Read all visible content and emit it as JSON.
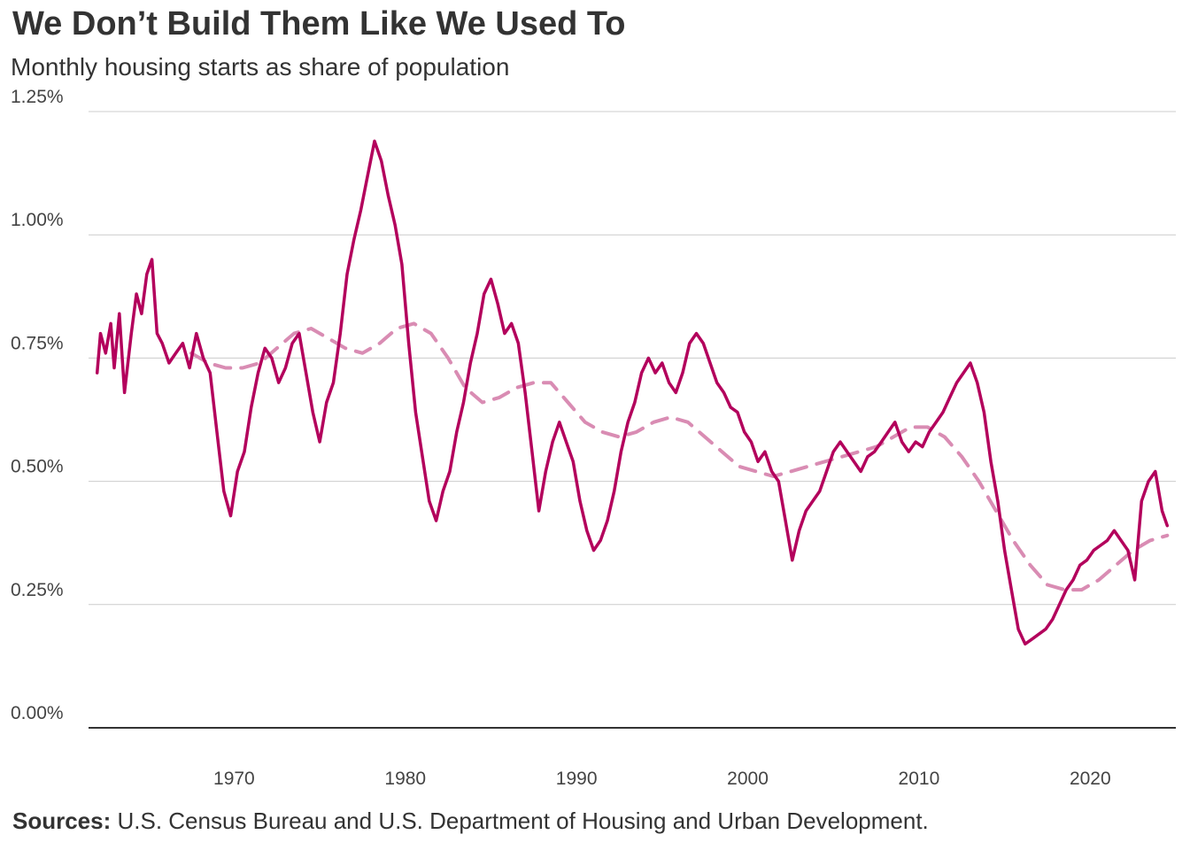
{
  "title": "We Don’t Build  Them Like  We Used  To",
  "subtitle": "Monthly housing starts as share of population",
  "source": {
    "label": "Sources:",
    "text": " U.S. Census Bureau and U.S. Department of Housing and Urban Development."
  },
  "colors": {
    "series": "#b3005c",
    "trend": "#d98cb3",
    "grid": "#cccccc",
    "axis": "#333333",
    "text": "#333333"
  },
  "chart_data": {
    "type": "line",
    "title": "We Don’t Build  Them Like  We Used  To",
    "subtitle": "Monthly housing starts as share of population",
    "xlabel": "",
    "ylabel": "",
    "xlim": [
      1961.5,
      2025.0
    ],
    "ylim": [
      0,
      1.25
    ],
    "x_ticks": [
      1970,
      1980,
      1990,
      2000,
      2010,
      2020
    ],
    "x_tick_labels": [
      "1970",
      "1980",
      "1990",
      "2000",
      "2010",
      "2020"
    ],
    "y_ticks": [
      0,
      0.25,
      0.5,
      0.75,
      1.0,
      1.25
    ],
    "y_tick_labels": [
      "0.00%",
      "0.25%",
      "0.50%",
      "0.75%",
      "1.00%",
      "1.25%"
    ],
    "grid": true,
    "legend": "none",
    "series": [
      {
        "style": "solid",
        "points": [
          [
            1962.0,
            0.72
          ],
          [
            1962.2,
            0.8
          ],
          [
            1962.5,
            0.76
          ],
          [
            1962.8,
            0.82
          ],
          [
            1963.0,
            0.73
          ],
          [
            1963.3,
            0.84
          ],
          [
            1963.6,
            0.68
          ],
          [
            1964.0,
            0.8
          ],
          [
            1964.3,
            0.88
          ],
          [
            1964.6,
            0.84
          ],
          [
            1964.9,
            0.92
          ],
          [
            1965.2,
            0.95
          ],
          [
            1965.5,
            0.8
          ],
          [
            1965.8,
            0.78
          ],
          [
            1966.2,
            0.74
          ],
          [
            1966.6,
            0.76
          ],
          [
            1967.0,
            0.78
          ],
          [
            1967.4,
            0.73
          ],
          [
            1967.8,
            0.8
          ],
          [
            1968.2,
            0.75
          ],
          [
            1968.6,
            0.72
          ],
          [
            1969.0,
            0.6
          ],
          [
            1969.4,
            0.48
          ],
          [
            1969.8,
            0.43
          ],
          [
            1970.2,
            0.52
          ],
          [
            1970.6,
            0.56
          ],
          [
            1971.0,
            0.65
          ],
          [
            1971.4,
            0.72
          ],
          [
            1971.8,
            0.77
          ],
          [
            1972.2,
            0.75
          ],
          [
            1972.6,
            0.7
          ],
          [
            1973.0,
            0.73
          ],
          [
            1973.4,
            0.78
          ],
          [
            1973.8,
            0.8
          ],
          [
            1974.2,
            0.72
          ],
          [
            1974.6,
            0.64
          ],
          [
            1975.0,
            0.58
          ],
          [
            1975.4,
            0.66
          ],
          [
            1975.8,
            0.7
          ],
          [
            1976.2,
            0.8
          ],
          [
            1976.6,
            0.92
          ],
          [
            1977.0,
            0.99
          ],
          [
            1977.4,
            1.05
          ],
          [
            1977.8,
            1.12
          ],
          [
            1978.2,
            1.19
          ],
          [
            1978.6,
            1.15
          ],
          [
            1979.0,
            1.08
          ],
          [
            1979.4,
            1.02
          ],
          [
            1979.8,
            0.94
          ],
          [
            1980.2,
            0.78
          ],
          [
            1980.6,
            0.64
          ],
          [
            1981.0,
            0.55
          ],
          [
            1981.4,
            0.46
          ],
          [
            1981.8,
            0.42
          ],
          [
            1982.2,
            0.48
          ],
          [
            1982.6,
            0.52
          ],
          [
            1983.0,
            0.6
          ],
          [
            1983.4,
            0.66
          ],
          [
            1983.8,
            0.74
          ],
          [
            1984.2,
            0.8
          ],
          [
            1984.6,
            0.88
          ],
          [
            1985.0,
            0.91
          ],
          [
            1985.4,
            0.86
          ],
          [
            1985.8,
            0.8
          ],
          [
            1986.2,
            0.82
          ],
          [
            1986.6,
            0.78
          ],
          [
            1987.0,
            0.68
          ],
          [
            1987.4,
            0.56
          ],
          [
            1987.8,
            0.44
          ],
          [
            1988.2,
            0.52
          ],
          [
            1988.6,
            0.58
          ],
          [
            1989.0,
            0.62
          ],
          [
            1989.4,
            0.58
          ],
          [
            1989.8,
            0.54
          ],
          [
            1990.2,
            0.46
          ],
          [
            1990.6,
            0.4
          ],
          [
            1991.0,
            0.36
          ],
          [
            1991.4,
            0.38
          ],
          [
            1991.8,
            0.42
          ],
          [
            1992.2,
            0.48
          ],
          [
            1992.6,
            0.56
          ],
          [
            1993.0,
            0.62
          ],
          [
            1993.4,
            0.66
          ],
          [
            1993.8,
            0.72
          ],
          [
            1994.2,
            0.75
          ],
          [
            1994.6,
            0.72
          ],
          [
            1995.0,
            0.74
          ],
          [
            1995.4,
            0.7
          ],
          [
            1995.8,
            0.68
          ],
          [
            1996.2,
            0.72
          ],
          [
            1996.6,
            0.78
          ],
          [
            1997.0,
            0.8
          ],
          [
            1997.4,
            0.78
          ],
          [
            1997.8,
            0.74
          ],
          [
            1998.2,
            0.7
          ],
          [
            1998.6,
            0.68
          ],
          [
            1999.0,
            0.65
          ],
          [
            1999.4,
            0.64
          ],
          [
            1999.8,
            0.6
          ],
          [
            2000.2,
            0.58
          ],
          [
            2000.6,
            0.54
          ],
          [
            2001.0,
            0.56
          ],
          [
            2001.4,
            0.52
          ],
          [
            2001.8,
            0.5
          ],
          [
            2002.2,
            0.42
          ],
          [
            2002.6,
            0.34
          ],
          [
            2003.0,
            0.4
          ],
          [
            2003.4,
            0.44
          ],
          [
            2003.8,
            0.46
          ],
          [
            2004.2,
            0.48
          ],
          [
            2004.6,
            0.52
          ],
          [
            2005.0,
            0.56
          ],
          [
            2005.4,
            0.58
          ],
          [
            2005.8,
            0.56
          ],
          [
            2006.2,
            0.54
          ],
          [
            2006.6,
            0.52
          ],
          [
            2007.0,
            0.55
          ],
          [
            2007.4,
            0.56
          ],
          [
            2007.8,
            0.58
          ],
          [
            2008.2,
            0.6
          ],
          [
            2008.6,
            0.62
          ],
          [
            2009.0,
            0.58
          ],
          [
            2009.4,
            0.56
          ],
          [
            2009.8,
            0.58
          ],
          [
            2010.2,
            0.57
          ],
          [
            2010.6,
            0.6
          ],
          [
            2011.0,
            0.62
          ],
          [
            2011.4,
            0.64
          ],
          [
            2011.8,
            0.67
          ],
          [
            2012.2,
            0.7
          ],
          [
            2012.6,
            0.72
          ],
          [
            2013.0,
            0.74
          ],
          [
            2013.4,
            0.7
          ],
          [
            2013.8,
            0.64
          ],
          [
            2014.2,
            0.54
          ],
          [
            2014.6,
            0.46
          ],
          [
            2015.0,
            0.36
          ],
          [
            2015.4,
            0.28
          ],
          [
            2015.8,
            0.2
          ],
          [
            2016.2,
            0.17
          ],
          [
            2016.6,
            0.18
          ],
          [
            2017.0,
            0.19
          ],
          [
            2017.4,
            0.2
          ],
          [
            2017.8,
            0.22
          ],
          [
            2018.2,
            0.25
          ],
          [
            2018.6,
            0.28
          ],
          [
            2019.0,
            0.3
          ],
          [
            2019.4,
            0.33
          ],
          [
            2019.8,
            0.34
          ],
          [
            2020.2,
            0.36
          ],
          [
            2020.6,
            0.37
          ],
          [
            2021.0,
            0.38
          ],
          [
            2021.4,
            0.4
          ],
          [
            2021.8,
            0.38
          ],
          [
            2022.2,
            0.36
          ],
          [
            2022.6,
            0.3
          ],
          [
            2023.0,
            0.46
          ],
          [
            2023.4,
            0.5
          ],
          [
            2023.8,
            0.52
          ],
          [
            2024.2,
            0.44
          ],
          [
            2024.5,
            0.41
          ]
        ]
      },
      {
        "style": "dashed",
        "points": [
          [
            1967.5,
            0.76
          ],
          [
            1968.5,
            0.74
          ],
          [
            1969.5,
            0.73
          ],
          [
            1970.5,
            0.73
          ],
          [
            1971.5,
            0.74
          ],
          [
            1972.5,
            0.77
          ],
          [
            1973.5,
            0.8
          ],
          [
            1974.5,
            0.81
          ],
          [
            1975.5,
            0.79
          ],
          [
            1976.5,
            0.77
          ],
          [
            1977.5,
            0.76
          ],
          [
            1978.5,
            0.78
          ],
          [
            1979.5,
            0.81
          ],
          [
            1980.5,
            0.82
          ],
          [
            1981.5,
            0.8
          ],
          [
            1982.5,
            0.75
          ],
          [
            1983.5,
            0.69
          ],
          [
            1984.5,
            0.66
          ],
          [
            1985.5,
            0.67
          ],
          [
            1986.5,
            0.69
          ],
          [
            1987.5,
            0.7
          ],
          [
            1988.5,
            0.7
          ],
          [
            1989.5,
            0.66
          ],
          [
            1990.5,
            0.62
          ],
          [
            1991.5,
            0.6
          ],
          [
            1992.5,
            0.59
          ],
          [
            1993.5,
            0.6
          ],
          [
            1994.5,
            0.62
          ],
          [
            1995.5,
            0.63
          ],
          [
            1996.5,
            0.62
          ],
          [
            1997.5,
            0.59
          ],
          [
            1998.5,
            0.56
          ],
          [
            1999.5,
            0.53
          ],
          [
            2000.5,
            0.52
          ],
          [
            2001.5,
            0.51
          ],
          [
            2002.5,
            0.52
          ],
          [
            2003.5,
            0.53
          ],
          [
            2004.5,
            0.54
          ],
          [
            2005.5,
            0.55
          ],
          [
            2006.5,
            0.56
          ],
          [
            2007.5,
            0.57
          ],
          [
            2008.5,
            0.59
          ],
          [
            2009.5,
            0.61
          ],
          [
            2010.5,
            0.61
          ],
          [
            2011.5,
            0.59
          ],
          [
            2012.5,
            0.55
          ],
          [
            2013.5,
            0.5
          ],
          [
            2014.5,
            0.44
          ],
          [
            2015.5,
            0.38
          ],
          [
            2016.5,
            0.33
          ],
          [
            2017.5,
            0.29
          ],
          [
            2018.5,
            0.28
          ],
          [
            2019.5,
            0.28
          ],
          [
            2020.5,
            0.3
          ],
          [
            2021.5,
            0.33
          ],
          [
            2022.5,
            0.36
          ],
          [
            2023.5,
            0.38
          ],
          [
            2024.5,
            0.39
          ]
        ]
      }
    ]
  }
}
